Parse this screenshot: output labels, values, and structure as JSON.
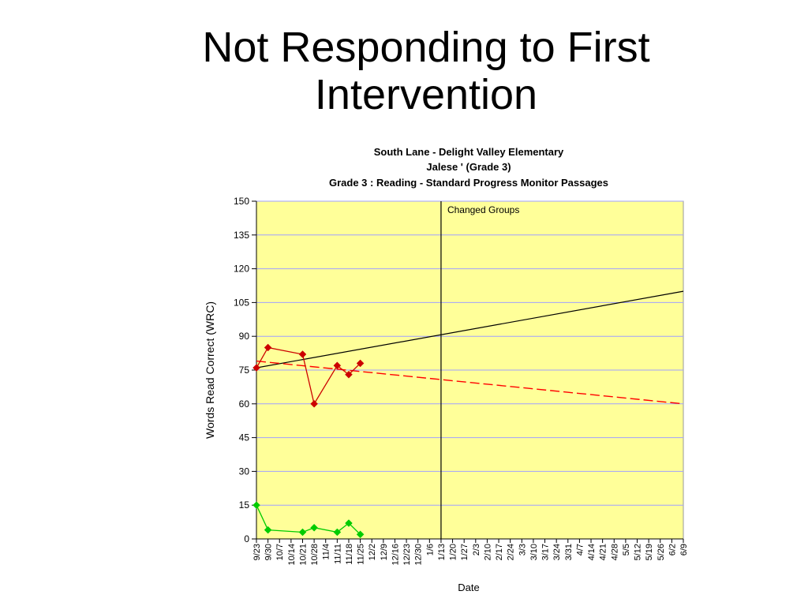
{
  "slide": {
    "title_line1": "Not Responding to First",
    "title_line2": "Intervention"
  },
  "chart_data": {
    "type": "line",
    "title_lines": [
      "South Lane - Delight Valley Elementary",
      "Jalese '             (Grade 3)",
      "Grade 3 : Reading - Standard Progress Monitor Passages"
    ],
    "xlabel": "Date",
    "ylabel": "Words Read Correct (WRC)",
    "ylim": [
      0,
      150
    ],
    "yticks": [
      0,
      15,
      30,
      45,
      60,
      75,
      90,
      105,
      120,
      135,
      150
    ],
    "categories": [
      "9/23",
      "9/30",
      "10/7",
      "10/14",
      "10/21",
      "10/28",
      "11/4",
      "11/11",
      "11/18",
      "11/25",
      "12/2",
      "12/9",
      "12/16",
      "12/23",
      "12/30",
      "1/6",
      "1/13",
      "1/20",
      "1/27",
      "2/3",
      "2/10",
      "2/17",
      "2/24",
      "3/3",
      "3/10",
      "3/17",
      "3/24",
      "3/31",
      "4/7",
      "4/14",
      "4/21",
      "4/28",
      "5/5",
      "5/12",
      "5/19",
      "5/26",
      "6/2",
      "6/9"
    ],
    "grid": true,
    "background": "#ffff99",
    "series": [
      {
        "color": "#cc0000",
        "marker": "diamond",
        "points": [
          {
            "x": "9/23",
            "y": 76
          },
          {
            "x": "9/30",
            "y": 85
          },
          {
            "x": "10/21",
            "y": 82
          },
          {
            "x": "10/28",
            "y": 60
          },
          {
            "x": "11/11",
            "y": 77
          },
          {
            "x": "11/18",
            "y": 73
          },
          {
            "x": "11/25",
            "y": 78
          }
        ]
      },
      {
        "color": "#00cc00",
        "marker": "diamond",
        "points": [
          {
            "x": "9/23",
            "y": 15
          },
          {
            "x": "9/30",
            "y": 4
          },
          {
            "x": "10/21",
            "y": 3
          },
          {
            "x": "10/28",
            "y": 5
          },
          {
            "x": "11/11",
            "y": 3
          },
          {
            "x": "11/18",
            "y": 7
          },
          {
            "x": "11/25",
            "y": 2
          }
        ]
      }
    ],
    "goal_line": {
      "color": "#000000",
      "from": {
        "x": "9/23",
        "y": 76
      },
      "to": {
        "x": "6/9",
        "y": 110
      }
    },
    "trend_line": {
      "color": "#ff0000",
      "dashed": true,
      "from": {
        "x": "9/23",
        "y": 79
      },
      "to": {
        "x": "6/9",
        "y": 60
      }
    },
    "annotations": [
      {
        "text": "Changed Groups",
        "x": "1/13"
      }
    ]
  }
}
